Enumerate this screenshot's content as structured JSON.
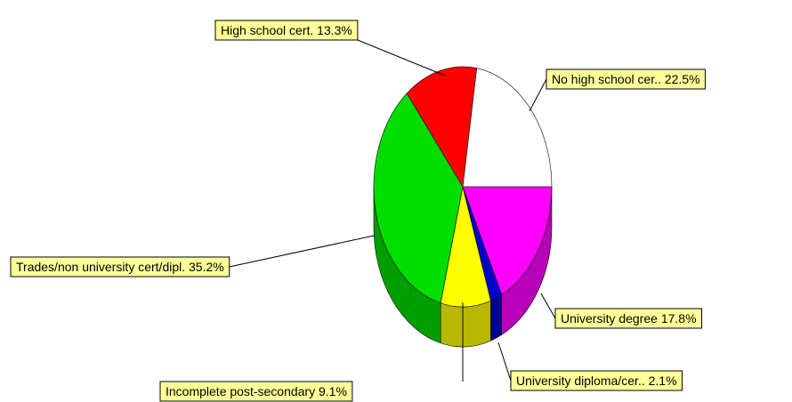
{
  "chart_data": {
    "type": "pie",
    "categories": [
      "No high school cer..",
      "University degree",
      "University diploma/cer..",
      "Incomplete post-secondary",
      "Trades/non university cert/dipl.",
      "High school cert."
    ],
    "values": [
      22.5,
      17.8,
      2.1,
      9.1,
      35.2,
      13.3
    ],
    "value_labels": [
      "22.5%",
      "17.8%",
      "2.1%",
      "9.1%",
      "35.2%",
      "13.3%"
    ],
    "colors": [
      "#ffffff",
      "#ff00ff",
      "#0000cc",
      "#ffff00",
      "#00dd00",
      "#ff0000"
    ]
  }
}
